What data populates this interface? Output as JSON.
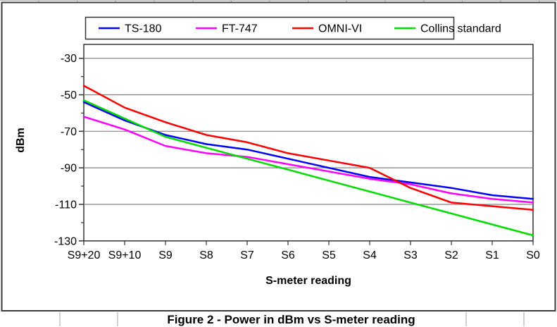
{
  "caption": "Figure 2 - Power in dBm vs S-meter reading",
  "chart_data": {
    "type": "line",
    "title": "",
    "xlabel": "S-meter reading",
    "ylabel": "dBm",
    "categories": [
      "S9+20",
      "S9+10",
      "S9",
      "S8",
      "S7",
      "S6",
      "S5",
      "S4",
      "S3",
      "S2",
      "S1",
      "S0"
    ],
    "series": [
      {
        "name": "TS-180",
        "color": "#0000ff",
        "values": [
          -54,
          -64,
          -72,
          -77,
          -80,
          -85,
          -90,
          -95,
          -98,
          -101,
          -105,
          -107
        ]
      },
      {
        "name": "FT-747",
        "color": "#ff00ff",
        "values": [
          -62,
          -69,
          -78,
          -82,
          -84,
          -88,
          -92,
          -96,
          -99,
          -104,
          -107,
          -109
        ]
      },
      {
        "name": "OMNI-VI",
        "color": "#ff0000",
        "values": [
          -45,
          -57,
          -65,
          -72,
          -76,
          -82,
          -86,
          -90,
          -101,
          -109,
          -111,
          -113
        ]
      },
      {
        "name": "Collins standard",
        "color": "#00dd00",
        "values": [
          -53,
          -63,
          -73,
          -79,
          -85,
          -91,
          -97,
          -103,
          -109,
          -115,
          -121,
          -127
        ]
      }
    ],
    "y_ticks": [
      -30,
      -50,
      -70,
      -90,
      -110,
      -130
    ],
    "y_minor_ticks": [
      -40,
      -60,
      -80,
      -100,
      -120
    ],
    "ylim": [
      -130,
      -22.4
    ],
    "grid": "horizontal-major",
    "legend_position": "top"
  },
  "colors": {
    "plot_background": "#ffffff",
    "gridline": "#808080",
    "axis": "#333333",
    "chart_border": "#3c3c3c",
    "sheet_line": "#b3b3b3",
    "text": "#000000"
  }
}
